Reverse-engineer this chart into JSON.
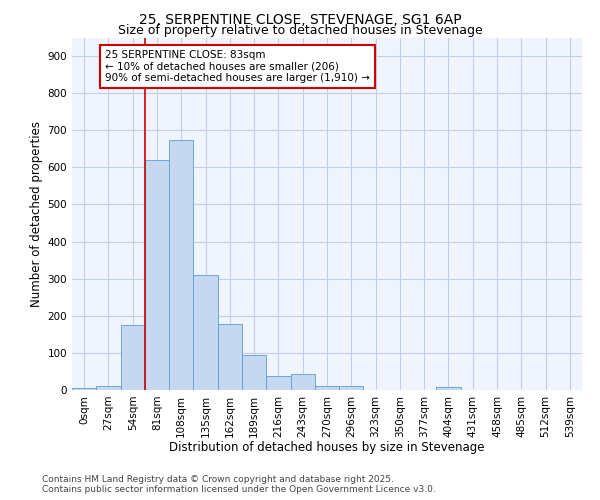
{
  "title": "25, SERPENTINE CLOSE, STEVENAGE, SG1 6AP",
  "subtitle": "Size of property relative to detached houses in Stevenage",
  "xlabel": "Distribution of detached houses by size in Stevenage",
  "ylabel": "Number of detached properties",
  "bin_labels": [
    "0sqm",
    "27sqm",
    "54sqm",
    "81sqm",
    "108sqm",
    "135sqm",
    "162sqm",
    "189sqm",
    "216sqm",
    "243sqm",
    "270sqm",
    "296sqm",
    "323sqm",
    "350sqm",
    "377sqm",
    "404sqm",
    "431sqm",
    "458sqm",
    "485sqm",
    "512sqm",
    "539sqm"
  ],
  "bar_values": [
    5,
    10,
    175,
    620,
    675,
    310,
    178,
    95,
    38,
    42,
    12,
    10,
    0,
    0,
    0,
    7,
    0,
    0,
    0,
    0,
    0
  ],
  "bar_color": "#c5d8f0",
  "bar_edgecolor": "#5a9fd4",
  "vline_color": "#cc0000",
  "annotation_text": "25 SERPENTINE CLOSE: 83sqm\n← 10% of detached houses are smaller (206)\n90% of semi-detached houses are larger (1,910) →",
  "annotation_box_color": "#ffffff",
  "annotation_box_edgecolor": "#cc0000",
  "ylim": [
    0,
    950
  ],
  "yticks": [
    0,
    100,
    200,
    300,
    400,
    500,
    600,
    700,
    800,
    900
  ],
  "footer_line1": "Contains HM Land Registry data © Crown copyright and database right 2025.",
  "footer_line2": "Contains public sector information licensed under the Open Government Licence v3.0.",
  "bg_color": "#ffffff",
  "plot_bg_color": "#f0f4fc",
  "grid_color": "#c0d0e8",
  "title_fontsize": 10,
  "subtitle_fontsize": 9,
  "axis_label_fontsize": 8.5,
  "tick_fontsize": 7.5,
  "annotation_fontsize": 7.5,
  "footer_fontsize": 6.5
}
